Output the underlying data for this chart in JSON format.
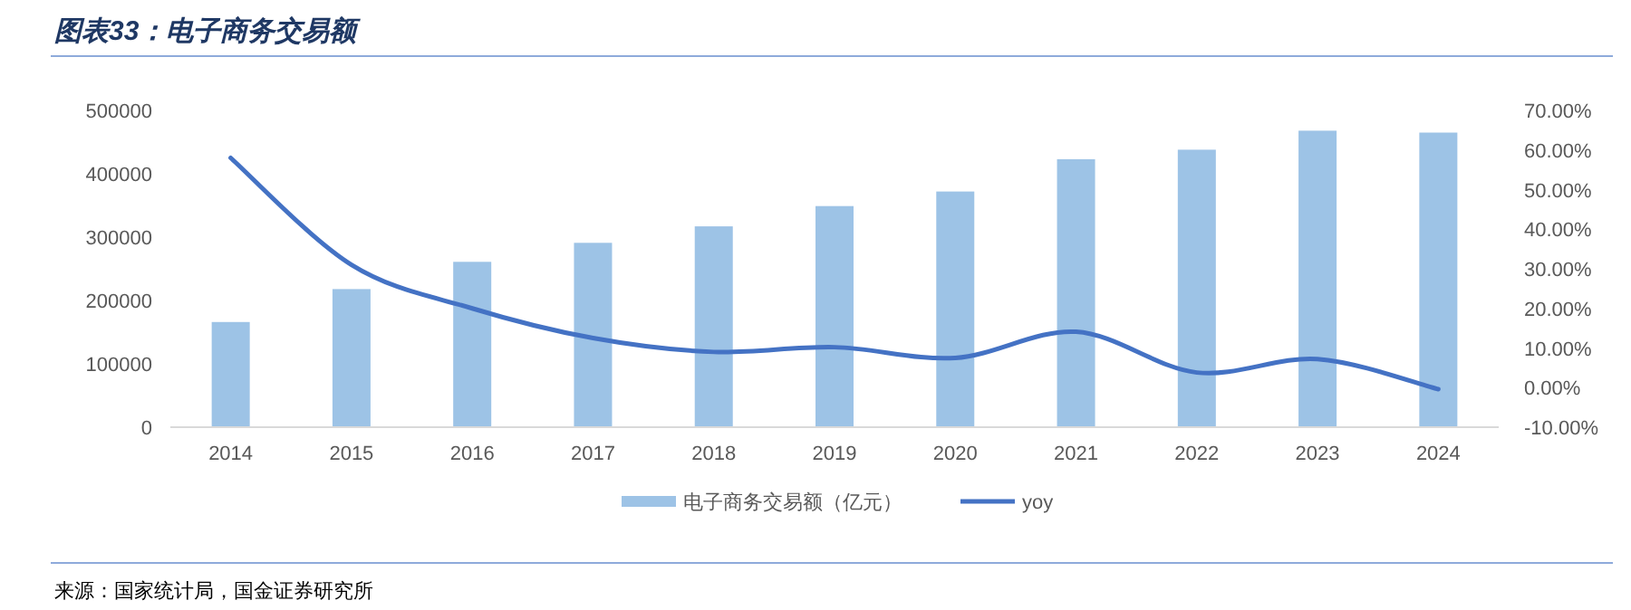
{
  "chart_data": {
    "type": "bar",
    "title": "图表33：电子商务交易额",
    "categories": [
      "2014",
      "2015",
      "2016",
      "2017",
      "2018",
      "2019",
      "2020",
      "2021",
      "2022",
      "2023",
      "2024"
    ],
    "series": [
      {
        "name": "电子商务交易额（亿元）",
        "color": "#9dc3e6",
        "values": [
          166000,
          218000,
          261000,
          291000,
          317000,
          349000,
          372000,
          423000,
          438000,
          468000,
          465000
        ]
      },
      {
        "name": "yoy",
        "type": "line",
        "axis": "y2",
        "color": "#4472c4",
        "values": [
          58,
          31,
          20,
          12.5,
          9,
          10.2,
          7.5,
          14.1,
          3.8,
          7.2,
          -0.4
        ]
      }
    ],
    "ylim": [
      0,
      500000
    ],
    "yticks": [
      0,
      100000,
      200000,
      300000,
      400000,
      500000
    ],
    "y2lim": [
      -10,
      70
    ],
    "y2ticks": [
      {
        "value": -10,
        "label": "-10.00%"
      },
      {
        "value": 0,
        "label": "0.00%"
      },
      {
        "value": 10,
        "label": "10.00%"
      },
      {
        "value": 20,
        "label": "20.00%"
      },
      {
        "value": 30,
        "label": "30.00%"
      },
      {
        "value": 40,
        "label": "40.00%"
      },
      {
        "value": 50,
        "label": "50.00%"
      },
      {
        "value": 60,
        "label": "60.00%"
      },
      {
        "value": 70,
        "label": "70.00%"
      }
    ],
    "grid": false,
    "legend": "bottom",
    "marker": "none",
    "line_style": "solid",
    "annotations": [
      "来源：国家统计局，国金证券研究所"
    ]
  }
}
